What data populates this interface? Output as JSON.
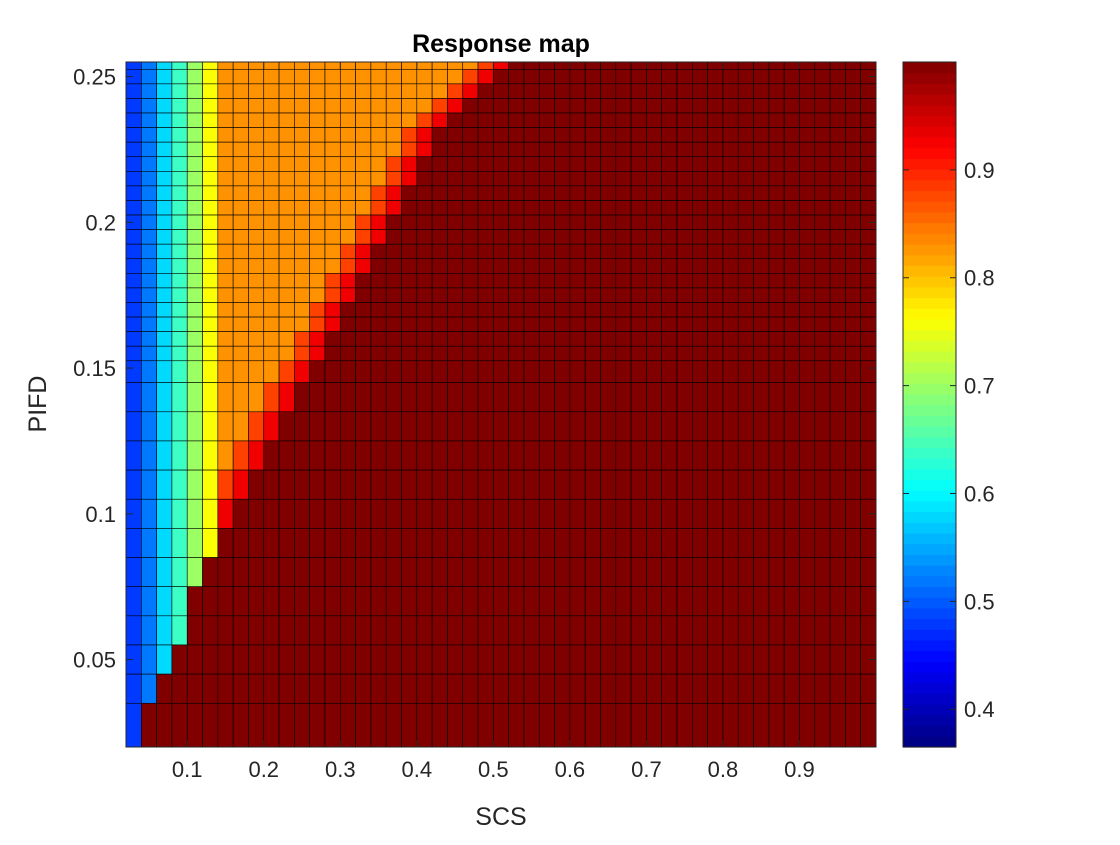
{
  "chart_data": {
    "type": "heatmap",
    "title": "Response map",
    "xlabel": "SCS",
    "ylabel": "PIFD",
    "x_range": [
      0.02,
      1.0
    ],
    "y_range": [
      0.02,
      0.255
    ],
    "x_ticks": [
      {
        "value": 0.1,
        "label": "0.1"
      },
      {
        "value": 0.2,
        "label": "0.2"
      },
      {
        "value": 0.3,
        "label": "0.3"
      },
      {
        "value": 0.4,
        "label": "0.4"
      },
      {
        "value": 0.5,
        "label": "0.5"
      },
      {
        "value": 0.6,
        "label": "0.6"
      },
      {
        "value": 0.7,
        "label": "0.7"
      },
      {
        "value": 0.8,
        "label": "0.8"
      },
      {
        "value": 0.9,
        "label": "0.9"
      }
    ],
    "y_ticks": [
      {
        "value": 0.05,
        "label": "0.05"
      },
      {
        "value": 0.1,
        "label": "0.1"
      },
      {
        "value": 0.15,
        "label": "0.15"
      },
      {
        "value": 0.2,
        "label": "0.2"
      },
      {
        "value": 0.25,
        "label": "0.25"
      }
    ],
    "colorbar": {
      "colormap": "jet",
      "range": [
        0.365,
        1.0
      ],
      "ticks": [
        {
          "value": 0.4,
          "label": "0.4"
        },
        {
          "value": 0.5,
          "label": "0.5"
        },
        {
          "value": 0.6,
          "label": "0.6"
        },
        {
          "value": 0.7,
          "label": "0.7"
        },
        {
          "value": 0.8,
          "label": "0.8"
        },
        {
          "value": 0.9,
          "label": "0.9"
        }
      ]
    },
    "cell_rows_y": [
      0.255,
      0.25,
      0.245,
      0.24,
      0.235,
      0.23,
      0.225,
      0.22,
      0.215,
      0.21,
      0.205,
      0.2,
      0.195,
      0.19,
      0.185,
      0.18,
      0.175,
      0.17,
      0.165,
      0.16,
      0.155,
      0.15,
      0.14,
      0.13,
      0.12,
      0.11,
      0.1,
      0.09,
      0.08,
      0.07,
      0.06,
      0.05,
      0.04,
      0.03
    ],
    "boundary_x": [
      0.54,
      0.52,
      0.5,
      0.48,
      0.46,
      0.44,
      0.44,
      0.42,
      0.42,
      0.4,
      0.4,
      0.38,
      0.38,
      0.36,
      0.36,
      0.34,
      0.34,
      0.32,
      0.32,
      0.3,
      0.3,
      0.28,
      0.26,
      0.24,
      0.22,
      0.2,
      0.18,
      0.16,
      0.14,
      0.12,
      0.12,
      0.1,
      0.08,
      0.06
    ],
    "left_values": [
      0.48,
      0.52,
      0.58,
      0.64,
      0.7,
      0.76
    ],
    "plateau_value": 0.83,
    "peak_value": 0.93,
    "saturated_value": 1.0,
    "x_step": 0.02,
    "grid": true
  }
}
